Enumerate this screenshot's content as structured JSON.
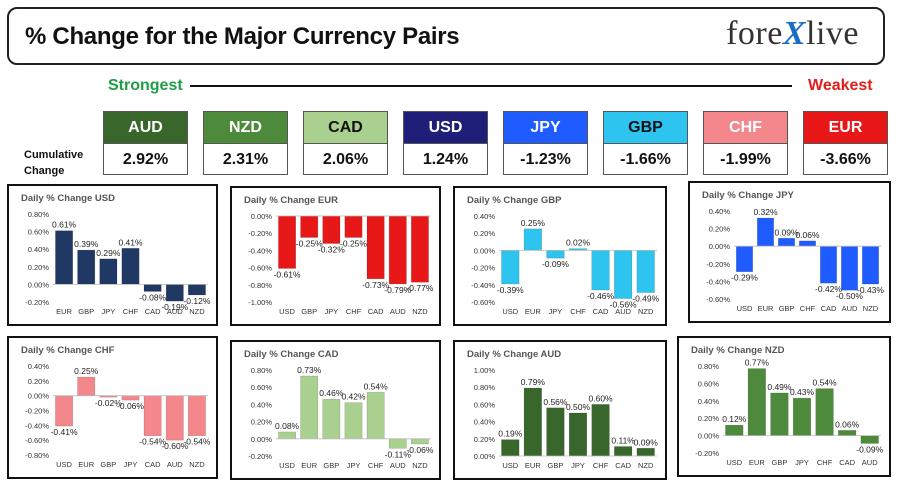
{
  "header": {
    "title": "% Change for the Major Currency Pairs",
    "logo_left": "fore",
    "logo_x": "X",
    "logo_right": "live"
  },
  "ranking": {
    "strongest_label": "Strongest",
    "weakest_label": "Weakest",
    "cumulative_label": "Cumulative Change",
    "currencies": [
      {
        "code": "AUD",
        "value": "2.92%",
        "bg": "#38662b",
        "fg": "#ffffff"
      },
      {
        "code": "NZD",
        "value": "2.31%",
        "bg": "#4e8a3c",
        "fg": "#ffffff"
      },
      {
        "code": "CAD",
        "value": "2.06%",
        "bg": "#a9d08e",
        "fg": "#111111"
      },
      {
        "code": "USD",
        "value": "1.24%",
        "bg": "#1f1f7a",
        "fg": "#ffffff"
      },
      {
        "code": "JPY",
        "value": "-1.23%",
        "bg": "#1e5cff",
        "fg": "#ffffff"
      },
      {
        "code": "GBP",
        "value": "-1.66%",
        "bg": "#2ec4f0",
        "fg": "#111111"
      },
      {
        "code": "CHF",
        "value": "-1.99%",
        "bg": "#f4878b",
        "fg": "#ffffff"
      },
      {
        "code": "EUR",
        "value": "-3.66%",
        "bg": "#e81818",
        "fg": "#ffffff"
      }
    ]
  },
  "chart_data": [
    {
      "type": "bar",
      "title": "Daily % Change USD",
      "categories": [
        "EUR",
        "GBP",
        "JPY",
        "CHF",
        "CAD",
        "AUD",
        "NZD"
      ],
      "values": [
        0.61,
        0.39,
        0.29,
        0.41,
        -0.08,
        -0.19,
        -0.12
      ],
      "labels": [
        "0.61%",
        "0.39%",
        "0.29%",
        "0.41%",
        "-0.08%",
        "-0.19%",
        "-0.12%"
      ],
      "ylim": [
        -0.2,
        0.8
      ],
      "ticks": [
        -0.2,
        0,
        0.2,
        0.4,
        0.6,
        0.8
      ],
      "tick_labels": [
        "-0.20%",
        "0.00%",
        "0.20%",
        "0.40%",
        "0.60%",
        "0.80%"
      ],
      "color": "#203864",
      "grid": false
    },
    {
      "type": "bar",
      "title": "Daily % Change EUR",
      "categories": [
        "USD",
        "GBP",
        "JPY",
        "CHF",
        "CAD",
        "AUD",
        "NZD"
      ],
      "values": [
        -0.61,
        -0.25,
        -0.32,
        -0.25,
        -0.73,
        -0.79,
        -0.77
      ],
      "labels": [
        "-0.61%",
        "-0.25%",
        "-0.32%",
        "-0.25%",
        "-0.73%",
        "-0.79%",
        "-0.77%"
      ],
      "ylim": [
        -1.0,
        0
      ],
      "ticks": [
        -1.0,
        -0.8,
        -0.6,
        -0.4,
        -0.2,
        0
      ],
      "tick_labels": [
        "-1.00%",
        "-0.80%",
        "-0.60%",
        "-0.40%",
        "-0.20%",
        "0.00%"
      ],
      "color": "#e81818",
      "grid": false
    },
    {
      "type": "bar",
      "title": "Daily % Change GBP",
      "categories": [
        "USD",
        "EUR",
        "JPY",
        "CHF",
        "CAD",
        "AUD",
        "NZD"
      ],
      "values": [
        -0.39,
        0.25,
        -0.09,
        0.02,
        -0.46,
        -0.56,
        -0.49
      ],
      "labels": [
        "-0.39%",
        "0.25%",
        "-0.09%",
        "0.02%",
        "-0.46%",
        "-0.56%",
        "-0.49%"
      ],
      "ylim": [
        -0.6,
        0.4
      ],
      "ticks": [
        -0.6,
        -0.4,
        -0.2,
        0,
        0.2,
        0.4
      ],
      "tick_labels": [
        "-0.60%",
        "-0.40%",
        "-0.20%",
        "0.00%",
        "0.20%",
        "0.40%"
      ],
      "color": "#2ec4f0",
      "grid": false
    },
    {
      "type": "bar",
      "title": "Daily % Change JPY",
      "categories": [
        "USD",
        "EUR",
        "GBP",
        "CHF",
        "CAD",
        "AUD",
        "NZD"
      ],
      "values": [
        -0.29,
        0.32,
        0.09,
        0.06,
        -0.42,
        -0.5,
        -0.43
      ],
      "labels": [
        "-0.29%",
        "0.32%",
        "0.09%",
        "0.06%",
        "-0.42%",
        "-0.50%",
        "-0.43%"
      ],
      "ylim": [
        -0.6,
        0.4
      ],
      "ticks": [
        -0.6,
        -0.4,
        -0.2,
        0,
        0.2,
        0.4
      ],
      "tick_labels": [
        "-0.60%",
        "-0.40%",
        "-0.20%",
        "0.00%",
        "0.20%",
        "0.40%"
      ],
      "color": "#1e5cff",
      "grid": false
    },
    {
      "type": "bar",
      "title": "Daily % Change CHF",
      "categories": [
        "USD",
        "EUR",
        "GBP",
        "JPY",
        "CAD",
        "AUD",
        "NZD"
      ],
      "values": [
        -0.41,
        0.25,
        -0.02,
        -0.06,
        -0.54,
        -0.6,
        -0.54
      ],
      "labels": [
        "-0.41%",
        "0.25%",
        "-0.02%",
        "-0.06%",
        "-0.54%",
        "-0.60%",
        "-0.54%"
      ],
      "ylim": [
        -0.8,
        0.4
      ],
      "ticks": [
        -0.8,
        -0.6,
        -0.4,
        -0.2,
        0,
        0.2,
        0.4
      ],
      "tick_labels": [
        "-0.80%",
        "-0.60%",
        "-0.40%",
        "-0.20%",
        "0.00%",
        "0.20%",
        "0.40%"
      ],
      "color": "#f4878b",
      "grid": false
    },
    {
      "type": "bar",
      "title": "Daily % Change CAD",
      "categories": [
        "USD",
        "EUR",
        "GBP",
        "JPY",
        "CHF",
        "AUD",
        "NZD"
      ],
      "values": [
        0.08,
        0.73,
        0.46,
        0.42,
        0.54,
        -0.11,
        -0.06
      ],
      "labels": [
        "0.08%",
        "0.73%",
        "0.46%",
        "0.42%",
        "0.54%",
        "-0.11%",
        "-0.06%"
      ],
      "ylim": [
        -0.2,
        0.8
      ],
      "ticks": [
        -0.2,
        0,
        0.2,
        0.4,
        0.6,
        0.8
      ],
      "tick_labels": [
        "-0.20%",
        "0.00%",
        "0.20%",
        "0.40%",
        "0.60%",
        "0.80%"
      ],
      "color": "#a9d08e",
      "grid": false
    },
    {
      "type": "bar",
      "title": "Daily % Change AUD",
      "categories": [
        "USD",
        "EUR",
        "GBP",
        "JPY",
        "CHF",
        "CAD",
        "NZD"
      ],
      "values": [
        0.19,
        0.79,
        0.56,
        0.5,
        0.6,
        0.11,
        0.09
      ],
      "labels": [
        "0.19%",
        "0.79%",
        "0.56%",
        "0.50%",
        "0.60%",
        "0.11%",
        "0.09%"
      ],
      "ylim": [
        0,
        1.0
      ],
      "ticks": [
        0,
        0.2,
        0.4,
        0.6,
        0.8,
        1.0
      ],
      "tick_labels": [
        "0.00%",
        "0.20%",
        "0.40%",
        "0.60%",
        "0.80%",
        "1.00%"
      ],
      "color": "#38662b",
      "grid": false
    },
    {
      "type": "bar",
      "title": "Daily % Change NZD",
      "categories": [
        "USD",
        "EUR",
        "GBP",
        "JPY",
        "CHF",
        "CAD",
        "AUD"
      ],
      "values": [
        0.12,
        0.77,
        0.49,
        0.43,
        0.54,
        0.06,
        -0.09
      ],
      "labels": [
        "0.12%",
        "0.77%",
        "0.49%",
        "0.43%",
        "0.54%",
        "0.06%",
        "-0.09%"
      ],
      "ylim": [
        -0.2,
        0.8
      ],
      "ticks": [
        -0.2,
        0,
        0.2,
        0.4,
        0.6,
        0.8
      ],
      "tick_labels": [
        "-0.20%",
        "0.00%",
        "0.20%",
        "0.40%",
        "0.60%",
        "0.80%"
      ],
      "color": "#4e8a3c",
      "grid": false
    }
  ]
}
